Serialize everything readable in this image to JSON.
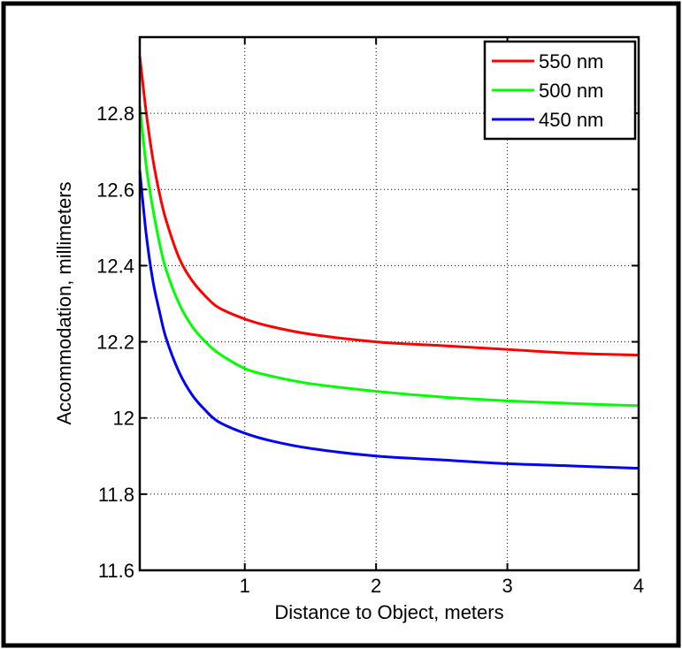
{
  "chart_data": {
    "type": "line",
    "xlabel": "Distance to Object, meters",
    "ylabel": "Accommodation, millimeters",
    "xlim": [
      0.2,
      4
    ],
    "ylim": [
      11.6,
      13.0
    ],
    "xticks": [
      1,
      2,
      3,
      4
    ],
    "xtick_labels": [
      "1",
      "2",
      "3",
      "4"
    ],
    "yticks": [
      11.6,
      11.8,
      12.0,
      12.2,
      12.4,
      12.6,
      12.8
    ],
    "ytick_labels": [
      "11.6",
      "11.8",
      "12",
      "12.2",
      "12.4",
      "12.6",
      "12.8"
    ],
    "grid": true,
    "legend_position": "top-right",
    "series": [
      {
        "name": "550 nm",
        "color": "#ff0000",
        "x": [
          0.2,
          0.25,
          0.3,
          0.35,
          0.4,
          0.5,
          0.6,
          0.7,
          0.8,
          1.0,
          1.2,
          1.5,
          2.0,
          2.5,
          3.0,
          3.5,
          4.0
        ],
        "values": [
          12.95,
          12.8,
          12.68,
          12.59,
          12.52,
          12.42,
          12.36,
          12.32,
          12.29,
          12.26,
          12.24,
          12.22,
          12.2,
          12.19,
          12.18,
          12.17,
          12.165
        ]
      },
      {
        "name": "500 nm",
        "color": "#00ff00",
        "x": [
          0.2,
          0.25,
          0.3,
          0.35,
          0.4,
          0.5,
          0.6,
          0.7,
          0.8,
          1.0,
          1.2,
          1.5,
          2.0,
          2.5,
          3.0,
          3.5,
          4.0
        ],
        "values": [
          12.82,
          12.66,
          12.55,
          12.46,
          12.39,
          12.3,
          12.24,
          12.2,
          12.17,
          12.13,
          12.11,
          12.09,
          12.07,
          12.055,
          12.045,
          12.038,
          12.032
        ]
      },
      {
        "name": "450 nm",
        "color": "#0000ff",
        "x": [
          0.2,
          0.25,
          0.3,
          0.35,
          0.4,
          0.5,
          0.6,
          0.7,
          0.8,
          1.0,
          1.2,
          1.5,
          2.0,
          2.5,
          3.0,
          3.5,
          4.0
        ],
        "values": [
          12.65,
          12.48,
          12.36,
          12.28,
          12.21,
          12.12,
          12.06,
          12.02,
          11.99,
          11.96,
          11.94,
          11.92,
          11.9,
          11.89,
          11.88,
          11.874,
          11.868
        ]
      }
    ]
  }
}
